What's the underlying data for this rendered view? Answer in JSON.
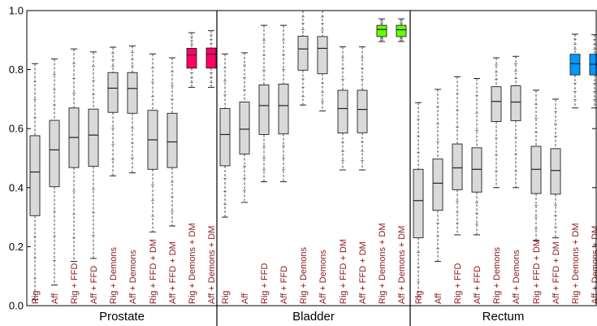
{
  "chart_data": {
    "type": "box",
    "ylim": [
      0,
      1.0
    ],
    "yticks": [
      "0.0",
      "0.2",
      "0.4",
      "0.6",
      "0.8",
      "1.0"
    ],
    "grid": false,
    "colors": {
      "default": "#d9d9d9",
      "dm_demons_prostate": "#ff0066",
      "dm_demons_bladder": "#66ff00",
      "dm_demons_rectum": "#0099ff"
    },
    "panels": [
      {
        "label": "Prostate",
        "boxes": [
          {
            "name": "Rig",
            "whisker_low": 0.02,
            "q1": 0.305,
            "median": 0.453,
            "q3": 0.576,
            "whisker_high": 0.82,
            "color": "#d9d9d9"
          },
          {
            "name": "Aff",
            "whisker_low": 0.07,
            "q1": 0.403,
            "median": 0.528,
            "q3": 0.628,
            "whisker_high": 0.836,
            "color": "#d9d9d9"
          },
          {
            "name": "Rig + FFD",
            "whisker_low": 0.15,
            "q1": 0.468,
            "median": 0.57,
            "q3": 0.67,
            "whisker_high": 0.87,
            "color": "#d9d9d9"
          },
          {
            "name": "Aff + FFD",
            "whisker_low": 0.16,
            "q1": 0.472,
            "median": 0.578,
            "q3": 0.666,
            "whisker_high": 0.86,
            "color": "#d9d9d9"
          },
          {
            "name": "Rig + Demons",
            "whisker_low": 0.44,
            "q1": 0.655,
            "median": 0.737,
            "q3": 0.79,
            "whisker_high": 0.876,
            "color": "#d9d9d9"
          },
          {
            "name": "Aff + Demons",
            "whisker_low": 0.45,
            "q1": 0.652,
            "median": 0.736,
            "q3": 0.79,
            "whisker_high": 0.88,
            "color": "#d9d9d9"
          },
          {
            "name": "Rig + FFD + DM",
            "whisker_low": 0.25,
            "q1": 0.462,
            "median": 0.562,
            "q3": 0.662,
            "whisker_high": 0.853,
            "color": "#d9d9d9"
          },
          {
            "name": "Aff + FFD + DM",
            "whisker_low": 0.27,
            "q1": 0.468,
            "median": 0.555,
            "q3": 0.652,
            "whisker_high": 0.84,
            "color": "#d9d9d9"
          },
          {
            "name": "Rig + Demons + DM",
            "whisker_low": 0.74,
            "q1": 0.805,
            "median": 0.849,
            "q3": 0.872,
            "whisker_high": 0.925,
            "color": "#ff0066"
          },
          {
            "name": "Aff + Demons + DM",
            "whisker_low": 0.74,
            "q1": 0.805,
            "median": 0.852,
            "q3": 0.873,
            "whisker_high": 0.932,
            "color": "#ff0066"
          }
        ]
      },
      {
        "label": "Bladder",
        "boxes": [
          {
            "name": "Rig",
            "whisker_low": 0.3,
            "q1": 0.474,
            "median": 0.58,
            "q3": 0.668,
            "whisker_high": 0.853,
            "color": "#d9d9d9"
          },
          {
            "name": "Aff",
            "whisker_low": 0.35,
            "q1": 0.514,
            "median": 0.598,
            "q3": 0.69,
            "whisker_high": 0.857,
            "color": "#d9d9d9"
          },
          {
            "name": "Rig + FFD",
            "whisker_low": 0.42,
            "q1": 0.58,
            "median": 0.678,
            "q3": 0.748,
            "whisker_high": 0.95,
            "color": "#d9d9d9"
          },
          {
            "name": "Aff + FFD",
            "whisker_low": 0.42,
            "q1": 0.582,
            "median": 0.678,
            "q3": 0.751,
            "whisker_high": 0.95,
            "color": "#d9d9d9"
          },
          {
            "name": "Rig + Demons",
            "whisker_low": 0.68,
            "q1": 0.798,
            "median": 0.87,
            "q3": 0.913,
            "whisker_high": 1.0,
            "color": "#d9d9d9"
          },
          {
            "name": "Aff + Demons",
            "whisker_low": 0.66,
            "q1": 0.786,
            "median": 0.872,
            "q3": 0.912,
            "whisker_high": 1.0,
            "color": "#d9d9d9"
          },
          {
            "name": "Rig + FFD + DM",
            "whisker_low": 0.46,
            "q1": 0.585,
            "median": 0.668,
            "q3": 0.73,
            "whisker_high": 0.877,
            "color": "#d9d9d9"
          },
          {
            "name": "Aff + FFD + DM",
            "whisker_low": 0.46,
            "q1": 0.586,
            "median": 0.665,
            "q3": 0.73,
            "whisker_high": 0.877,
            "color": "#d9d9d9"
          },
          {
            "name": "Rig + Demons + DM",
            "whisker_low": 0.895,
            "q1": 0.912,
            "median": 0.936,
            "q3": 0.95,
            "whisker_high": 0.972,
            "color": "#66ff00"
          },
          {
            "name": "Aff + Demons + DM",
            "whisker_low": 0.895,
            "q1": 0.912,
            "median": 0.935,
            "q3": 0.95,
            "whisker_high": 0.972,
            "color": "#66ff00"
          }
        ]
      },
      {
        "label": "Rectum",
        "boxes": [
          {
            "name": "Rig",
            "whisker_low": 0.03,
            "q1": 0.23,
            "median": 0.356,
            "q3": 0.462,
            "whisker_high": 0.688,
            "color": "#d9d9d9"
          },
          {
            "name": "Aff",
            "whisker_low": 0.15,
            "q1": 0.323,
            "median": 0.415,
            "q3": 0.497,
            "whisker_high": 0.733,
            "color": "#d9d9d9"
          },
          {
            "name": "Rig + FFD",
            "whisker_low": 0.24,
            "q1": 0.393,
            "median": 0.467,
            "q3": 0.548,
            "whisker_high": 0.776,
            "color": "#d9d9d9"
          },
          {
            "name": "Aff + FFD",
            "whisker_low": 0.24,
            "q1": 0.385,
            "median": 0.462,
            "q3": 0.535,
            "whisker_high": 0.77,
            "color": "#d9d9d9"
          },
          {
            "name": "Rig + Demons",
            "whisker_low": 0.4,
            "q1": 0.624,
            "median": 0.692,
            "q3": 0.742,
            "whisker_high": 0.84,
            "color": "#d9d9d9"
          },
          {
            "name": "Aff + Demons",
            "whisker_low": 0.4,
            "q1": 0.627,
            "median": 0.69,
            "q3": 0.745,
            "whisker_high": 0.845,
            "color": "#d9d9d9"
          },
          {
            "name": "Rig + FFD + DM",
            "whisker_low": 0.22,
            "q1": 0.38,
            "median": 0.462,
            "q3": 0.54,
            "whisker_high": 0.73,
            "color": "#d9d9d9"
          },
          {
            "name": "Aff + FFD + DM",
            "whisker_low": 0.23,
            "q1": 0.378,
            "median": 0.458,
            "q3": 0.532,
            "whisker_high": 0.7,
            "color": "#d9d9d9"
          },
          {
            "name": "Rig + Demons + DM",
            "whisker_low": 0.67,
            "q1": 0.782,
            "median": 0.82,
            "q3": 0.852,
            "whisker_high": 0.92,
            "color": "#0099ff"
          },
          {
            "name": "Aff + Demons + DM",
            "whisker_low": 0.67,
            "q1": 0.782,
            "median": 0.818,
            "q3": 0.852,
            "whisker_high": 0.918,
            "color": "#0099ff"
          }
        ]
      }
    ]
  }
}
